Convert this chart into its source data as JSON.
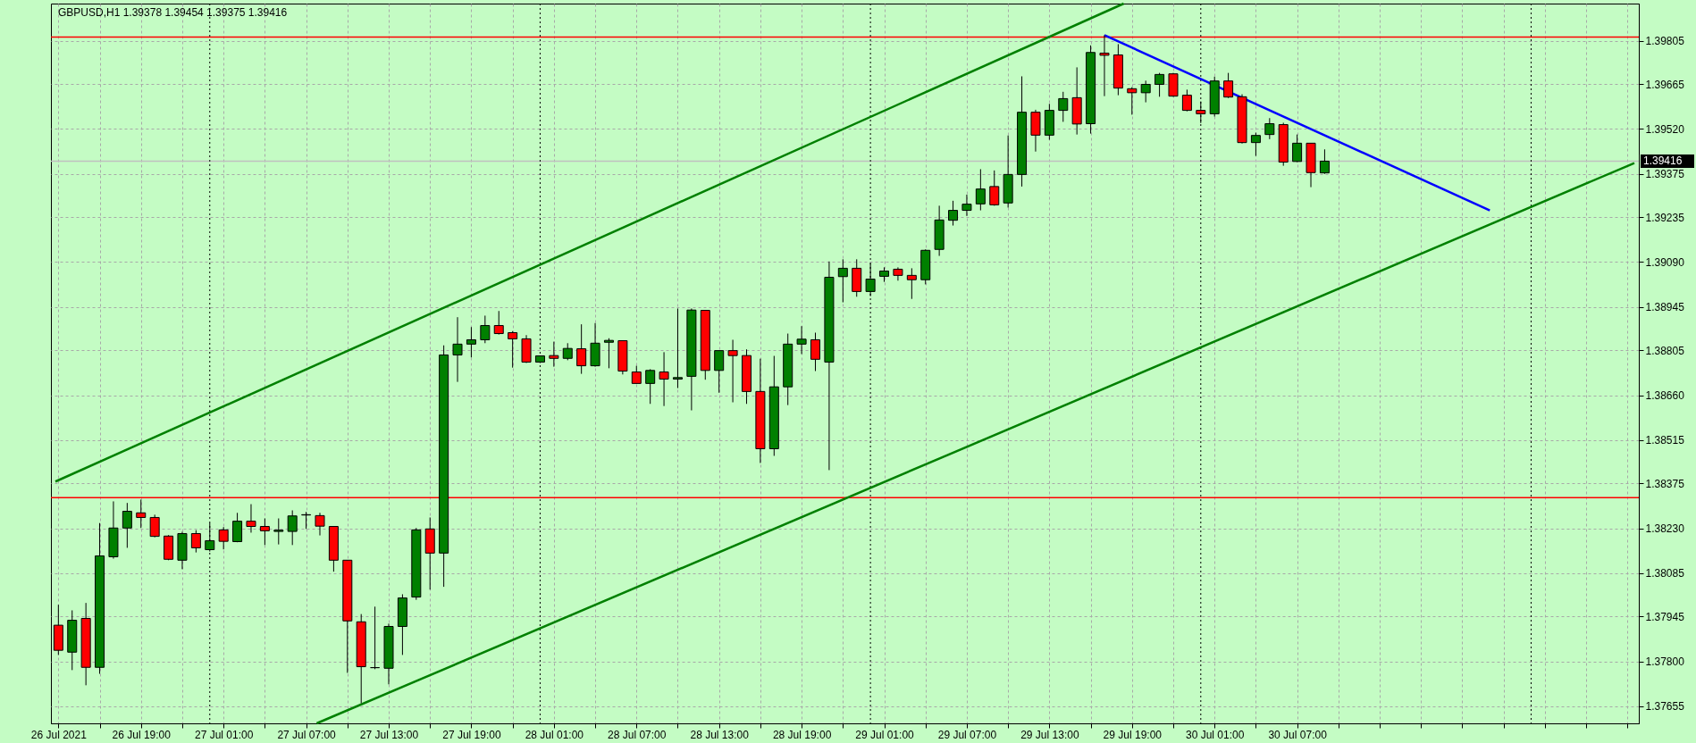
{
  "chart_data": {
    "type": "candlestick",
    "title": "GBPUSD,H1  1.39378 1.39454 1.39375 1.39416",
    "x": [
      "2021-07-26T13:00",
      "2021-07-26T14:00",
      "2021-07-26T15:00",
      "2021-07-26T16:00",
      "2021-07-26T17:00",
      "2021-07-26T18:00",
      "2021-07-26T19:00",
      "2021-07-26T20:00",
      "2021-07-26T21:00",
      "2021-07-26T22:00",
      "2021-07-26T23:00",
      "2021-07-27T00:00",
      "2021-07-27T01:00",
      "2021-07-27T02:00",
      "2021-07-27T03:00",
      "2021-07-27T04:00",
      "2021-07-27T05:00",
      "2021-07-27T06:00",
      "2021-07-27T07:00",
      "2021-07-27T08:00",
      "2021-07-27T09:00",
      "2021-07-27T10:00",
      "2021-07-27T11:00",
      "2021-07-27T12:00",
      "2021-07-27T13:00",
      "2021-07-27T14:00",
      "2021-07-27T15:00",
      "2021-07-27T16:00",
      "2021-07-27T17:00",
      "2021-07-27T18:00",
      "2021-07-27T19:00",
      "2021-07-27T20:00",
      "2021-07-27T21:00",
      "2021-07-27T22:00",
      "2021-07-27T23:00",
      "2021-07-28T00:00",
      "2021-07-28T01:00",
      "2021-07-28T02:00",
      "2021-07-28T03:00",
      "2021-07-28T04:00",
      "2021-07-28T05:00",
      "2021-07-28T06:00",
      "2021-07-28T07:00",
      "2021-07-28T08:00",
      "2021-07-28T09:00",
      "2021-07-28T10:00",
      "2021-07-28T11:00",
      "2021-07-28T12:00",
      "2021-07-28T13:00",
      "2021-07-28T14:00",
      "2021-07-28T15:00",
      "2021-07-28T16:00",
      "2021-07-28T17:00",
      "2021-07-28T18:00",
      "2021-07-28T19:00",
      "2021-07-28T20:00",
      "2021-07-28T21:00",
      "2021-07-28T22:00",
      "2021-07-28T23:00",
      "2021-07-29T00:00",
      "2021-07-29T01:00",
      "2021-07-29T02:00",
      "2021-07-29T03:00",
      "2021-07-29T04:00",
      "2021-07-29T05:00",
      "2021-07-29T06:00",
      "2021-07-29T07:00",
      "2021-07-29T08:00",
      "2021-07-29T09:00",
      "2021-07-29T10:00",
      "2021-07-29T11:00",
      "2021-07-29T12:00",
      "2021-07-29T13:00",
      "2021-07-29T14:00",
      "2021-07-29T15:00",
      "2021-07-29T16:00",
      "2021-07-29T17:00",
      "2021-07-29T18:00",
      "2021-07-29T19:00",
      "2021-07-29T20:00",
      "2021-07-29T21:00",
      "2021-07-29T22:00",
      "2021-07-29T23:00",
      "2021-07-30T00:00",
      "2021-07-30T01:00",
      "2021-07-30T02:00",
      "2021-07-30T03:00",
      "2021-07-30T04:00",
      "2021-07-30T05:00",
      "2021-07-30T06:00",
      "2021-07-30T07:00",
      "2021-07-30T08:00",
      "2021-07-30T09:00"
    ],
    "ohlc": [
      [
        1.37917,
        1.37983,
        1.37821,
        1.37836
      ],
      [
        1.3783,
        1.37965,
        1.37772,
        1.37933
      ],
      [
        1.37939,
        1.37989,
        1.37723,
        1.37781
      ],
      [
        1.37781,
        1.38247,
        1.3776,
        1.38141
      ],
      [
        1.38138,
        1.38317,
        1.38132,
        1.38231
      ],
      [
        1.38231,
        1.38312,
        1.38167,
        1.38285
      ],
      [
        1.3828,
        1.38323,
        1.38231,
        1.38265
      ],
      [
        1.38265,
        1.38274,
        1.38201,
        1.38204
      ],
      [
        1.38205,
        1.38208,
        1.38127,
        1.3813
      ],
      [
        1.38127,
        1.38219,
        1.38098,
        1.38213
      ],
      [
        1.38213,
        1.38224,
        1.38152,
        1.38167
      ],
      [
        1.38161,
        1.38247,
        1.38155,
        1.3819
      ],
      [
        1.38225,
        1.38234,
        1.38162,
        1.38188
      ],
      [
        1.38187,
        1.3828,
        1.38185,
        1.38253
      ],
      [
        1.38253,
        1.38308,
        1.38216,
        1.38236
      ],
      [
        1.38236,
        1.38262,
        1.38176,
        1.38222
      ],
      [
        1.3822,
        1.38262,
        1.38178,
        1.38224
      ],
      [
        1.3822,
        1.38288,
        1.38176,
        1.3827
      ],
      [
        1.38273,
        1.38283,
        1.38228,
        1.38274
      ],
      [
        1.38271,
        1.3828,
        1.38207,
        1.38237
      ],
      [
        1.38236,
        1.38236,
        1.3809,
        1.38127
      ],
      [
        1.38127,
        1.38127,
        1.37763,
        1.37931
      ],
      [
        1.37928,
        1.37953,
        1.37665,
        1.37783
      ],
      [
        1.3778,
        1.37977,
        1.37775,
        1.3778
      ],
      [
        1.37778,
        1.37922,
        1.37726,
        1.37913
      ],
      [
        1.37913,
        1.38017,
        1.37821,
        1.38005
      ],
      [
        1.38008,
        1.38231,
        1.37999,
        1.38225
      ],
      [
        1.38228,
        1.38265,
        1.38032,
        1.3815
      ],
      [
        1.3815,
        1.38821,
        1.38041,
        1.3879
      ],
      [
        1.3879,
        1.38912,
        1.38703,
        1.38825
      ],
      [
        1.38825,
        1.3888,
        1.38782,
        1.38839
      ],
      [
        1.38839,
        1.38917,
        1.38828,
        1.38885
      ],
      [
        1.38885,
        1.38932,
        1.38856,
        1.38859
      ],
      [
        1.38862,
        1.38867,
        1.38749,
        1.38842
      ],
      [
        1.38842,
        1.38854,
        1.38764,
        1.38767
      ],
      [
        1.38767,
        1.38787,
        1.38764,
        1.38787
      ],
      [
        1.38788,
        1.38833,
        1.38752,
        1.38779
      ],
      [
        1.38779,
        1.38828,
        1.38773,
        1.38811
      ],
      [
        1.3881,
        1.38889,
        1.38729,
        1.38755
      ],
      [
        1.38755,
        1.38893,
        1.38752,
        1.38828
      ],
      [
        1.38831,
        1.38844,
        1.38747,
        1.38837
      ],
      [
        1.38836,
        1.38836,
        1.38727,
        1.38738
      ],
      [
        1.38735,
        1.38755,
        1.38698,
        1.38698
      ],
      [
        1.38698,
        1.38744,
        1.38632,
        1.3874
      ],
      [
        1.38735,
        1.38799,
        1.38625,
        1.38712
      ],
      [
        1.38712,
        1.3894,
        1.38683,
        1.38717
      ],
      [
        1.38721,
        1.3894,
        1.38611,
        1.38935
      ],
      [
        1.38934,
        1.38934,
        1.3871,
        1.3874
      ],
      [
        1.3874,
        1.38804,
        1.38668,
        1.38804
      ],
      [
        1.38804,
        1.38839,
        1.38637,
        1.38788
      ],
      [
        1.38788,
        1.38808,
        1.38632,
        1.38672
      ],
      [
        1.38672,
        1.38778,
        1.38441,
        1.38487
      ],
      [
        1.38487,
        1.38787,
        1.38464,
        1.38687
      ],
      [
        1.38687,
        1.38859,
        1.38628,
        1.38825
      ],
      [
        1.38825,
        1.38883,
        1.38793,
        1.38841
      ],
      [
        1.38839,
        1.38862,
        1.38738,
        1.38776
      ],
      [
        1.38767,
        1.39092,
        1.38418,
        1.39041
      ],
      [
        1.39043,
        1.39099,
        1.3896,
        1.3907
      ],
      [
        1.3907,
        1.39099,
        1.38978,
        1.38995
      ],
      [
        1.38995,
        1.39086,
        1.3898,
        1.39035
      ],
      [
        1.39044,
        1.39073,
        1.39026,
        1.39061
      ],
      [
        1.39067,
        1.39073,
        1.3903,
        1.39047
      ],
      [
        1.39047,
        1.3907,
        1.38971,
        1.39033
      ],
      [
        1.39033,
        1.39131,
        1.39018,
        1.39128
      ],
      [
        1.39131,
        1.39272,
        1.3911,
        1.39226
      ],
      [
        1.39225,
        1.39288,
        1.39208,
        1.39257
      ],
      [
        1.39257,
        1.39308,
        1.39239,
        1.39277
      ],
      [
        1.39278,
        1.3939,
        1.39257,
        1.39326
      ],
      [
        1.39334,
        1.39386,
        1.39272,
        1.39275
      ],
      [
        1.39281,
        1.39499,
        1.39266,
        1.39373
      ],
      [
        1.39373,
        1.3969,
        1.39334,
        1.39574
      ],
      [
        1.39574,
        1.39582,
        1.39447,
        1.395
      ],
      [
        1.395,
        1.39601,
        1.39485,
        1.3958
      ],
      [
        1.3958,
        1.3964,
        1.39543,
        1.39618
      ],
      [
        1.39621,
        1.39719,
        1.39502,
        1.39536
      ],
      [
        1.39537,
        1.3979,
        1.39505,
        1.39767
      ],
      [
        1.39765,
        1.39823,
        1.39626,
        1.39758
      ],
      [
        1.39759,
        1.39794,
        1.39629,
        1.39652
      ],
      [
        1.3965,
        1.39655,
        1.39566,
        1.39637
      ],
      [
        1.39637,
        1.39676,
        1.39606,
        1.39664
      ],
      [
        1.39664,
        1.39701,
        1.39624,
        1.39696
      ],
      [
        1.39698,
        1.39701,
        1.39624,
        1.39626
      ],
      [
        1.39629,
        1.39647,
        1.39577,
        1.3958
      ],
      [
        1.3958,
        1.39609,
        1.39539,
        1.39569
      ],
      [
        1.39569,
        1.39689,
        1.3956,
        1.39675
      ],
      [
        1.39675,
        1.39701,
        1.3962,
        1.39623
      ],
      [
        1.39624,
        1.39632,
        1.39473,
        1.39476
      ],
      [
        1.39476,
        1.39508,
        1.39433,
        1.39499
      ],
      [
        1.39502,
        1.39555,
        1.39487,
        1.39537
      ],
      [
        1.39534,
        1.3954,
        1.39401,
        1.39413
      ],
      [
        1.39415,
        1.39502,
        1.39413,
        1.39474
      ],
      [
        1.39474,
        1.39474,
        1.39332,
        1.39379
      ],
      [
        1.39378,
        1.39454,
        1.39375,
        1.39416
      ]
    ],
    "colors": [
      "#ff0000",
      "#008000",
      "#ff0000",
      "#008000",
      "#008000",
      "#008000",
      "#ff0000",
      "#ff0000",
      "#ff0000",
      "#008000",
      "#ff0000",
      "#008000",
      "#ff0000",
      "#008000",
      "#ff0000",
      "#ff0000",
      "#008000",
      "#008000",
      "#008000",
      "#ff0000",
      "#ff0000",
      "#ff0000",
      "#ff0000",
      "#000000",
      "#008000",
      "#008000",
      "#008000",
      "#ff0000",
      "#008000",
      "#008000",
      "#008000",
      "#008000",
      "#ff0000",
      "#ff0000",
      "#ff0000",
      "#008000",
      "#ff0000",
      "#008000",
      "#ff0000",
      "#008000",
      "#008000",
      "#ff0000",
      "#ff0000",
      "#008000",
      "#ff0000",
      "#008000",
      "#008000",
      "#ff0000",
      "#008000",
      "#ff0000",
      "#ff0000",
      "#ff0000",
      "#008000",
      "#008000",
      "#008000",
      "#ff0000",
      "#008000",
      "#008000",
      "#ff0000",
      "#008000",
      "#008000",
      "#ff0000",
      "#ff0000",
      "#008000",
      "#008000",
      "#008000",
      "#008000",
      "#008000",
      "#ff0000",
      "#008000",
      "#008000",
      "#ff0000",
      "#008000",
      "#008000",
      "#ff0000",
      "#008000",
      "#ff0000",
      "#ff0000",
      "#ff0000",
      "#008000",
      "#008000",
      "#ff0000",
      "#ff0000",
      "#ff0000",
      "#008000",
      "#ff0000",
      "#ff0000",
      "#008000",
      "#008000",
      "#ff0000",
      "#008000",
      "#ff0000",
      "#008000"
    ],
    "series": [
      {
        "type": "line",
        "color": "#008000",
        "x": [
          "2021-07-26T12:47",
          "2021-07-29T18:24"
        ],
        "values": [
          1.38381,
          1.39925
        ]
      },
      {
        "type": "line",
        "color": "#008000",
        "x": [
          "2021-07-27T07:46",
          "2021-07-31T07:30"
        ],
        "values": [
          1.376,
          1.3941
        ]
      },
      {
        "type": "line",
        "color": "#0000ff",
        "x": [
          "2021-07-29T17:00",
          "2021-07-30T21:00"
        ],
        "values": [
          1.39823,
          1.39257
        ]
      }
    ],
    "ref_lines": [
      {
        "axis": "y",
        "value": 1.39817,
        "color": "#ff0000",
        "line_style": "solid"
      },
      {
        "axis": "y",
        "value": 1.38329,
        "color": "#ff0000",
        "line_style": "solid"
      },
      {
        "axis": "y",
        "value": 1.39416,
        "label": "1.39416",
        "color": "#c0c0c0",
        "line_style": "solid"
      },
      {
        "axis": "x",
        "value": "2021-07-27T00:00",
        "color": "#000000",
        "line_style": "dotted"
      },
      {
        "axis": "x",
        "value": "2021-07-28T00:00",
        "color": "#000000",
        "line_style": "dotted"
      },
      {
        "axis": "x",
        "value": "2021-07-29T00:00",
        "color": "#000000",
        "line_style": "dotted"
      },
      {
        "axis": "x",
        "value": "2021-07-30T00:00",
        "color": "#000000",
        "line_style": "dotted"
      },
      {
        "axis": "x",
        "value": "2021-07-31T00:00",
        "color": "#000000",
        "line_style": "dotted"
      }
    ],
    "xlim": [
      "2021-07-26T12:47",
      "2021-07-31T07:30"
    ],
    "xticks": [
      {
        "value": "2021-07-26T13:00",
        "label": "26 Jul 2021"
      },
      {
        "value": "2021-07-26T16:00",
        "label": null
      },
      {
        "value": "2021-07-26T19:00",
        "label": "26 Jul 19:00"
      },
      {
        "value": "2021-07-26T22:00",
        "label": null
      },
      {
        "value": "2021-07-27T01:00",
        "label": "27 Jul 01:00"
      },
      {
        "value": "2021-07-27T04:00",
        "label": null
      },
      {
        "value": "2021-07-27T07:00",
        "label": "27 Jul 07:00"
      },
      {
        "value": "2021-07-27T10:00",
        "label": null
      },
      {
        "value": "2021-07-27T13:00",
        "label": "27 Jul 13:00"
      },
      {
        "value": "2021-07-27T16:00",
        "label": null
      },
      {
        "value": "2021-07-27T19:00",
        "label": "27 Jul 19:00"
      },
      {
        "value": "2021-07-27T22:00",
        "label": null
      },
      {
        "value": "2021-07-28T01:00",
        "label": "28 Jul 01:00"
      },
      {
        "value": "2021-07-28T04:00",
        "label": null
      },
      {
        "value": "2021-07-28T07:00",
        "label": "28 Jul 07:00"
      },
      {
        "value": "2021-07-28T10:00",
        "label": null
      },
      {
        "value": "2021-07-28T13:00",
        "label": "28 Jul 13:00"
      },
      {
        "value": "2021-07-28T16:00",
        "label": null
      },
      {
        "value": "2021-07-28T19:00",
        "label": "28 Jul 19:00"
      },
      {
        "value": "2021-07-28T22:00",
        "label": null
      },
      {
        "value": "2021-07-29T01:00",
        "label": "29 Jul 01:00"
      },
      {
        "value": "2021-07-29T04:00",
        "label": null
      },
      {
        "value": "2021-07-29T07:00",
        "label": "29 Jul 07:00"
      },
      {
        "value": "2021-07-29T10:00",
        "label": null
      },
      {
        "value": "2021-07-29T13:00",
        "label": "29 Jul 13:00"
      },
      {
        "value": "2021-07-29T16:00",
        "label": null
      },
      {
        "value": "2021-07-29T19:00",
        "label": "29 Jul 19:00"
      },
      {
        "value": "2021-07-29T22:00",
        "label": null
      },
      {
        "value": "2021-07-30T01:00",
        "label": "30 Jul 01:00"
      },
      {
        "value": "2021-07-30T04:00",
        "label": null
      },
      {
        "value": "2021-07-30T07:00",
        "label": "30 Jul 07:00"
      },
      {
        "value": "2021-07-30T10:00",
        "label": null
      },
      {
        "value": "2021-07-30T13:00",
        "label": null
      },
      {
        "value": "2021-07-30T16:00",
        "label": null
      },
      {
        "value": "2021-07-30T19:00",
        "label": null
      },
      {
        "value": "2021-07-30T22:00",
        "label": null
      },
      {
        "value": "2021-07-31T01:00",
        "label": null
      },
      {
        "value": "2021-07-31T04:00",
        "label": null
      },
      {
        "value": "2021-07-31T07:00",
        "label": null
      }
    ],
    "ylim": [
      1.376,
      1.39925
    ],
    "yticks": [
      {
        "value": 1.39805,
        "label": "1.39805"
      },
      {
        "value": 1.39665,
        "label": "1.39665"
      },
      {
        "value": 1.3952,
        "label": "1.39520"
      },
      {
        "value": 1.39375,
        "label": "1.39375"
      },
      {
        "value": 1.39235,
        "label": "1.39235"
      },
      {
        "value": 1.3909,
        "label": "1.39090"
      },
      {
        "value": 1.38945,
        "label": "1.38945"
      },
      {
        "value": 1.38805,
        "label": "1.38805"
      },
      {
        "value": 1.3866,
        "label": "1.38660"
      },
      {
        "value": 1.38515,
        "label": "1.38515"
      },
      {
        "value": 1.38375,
        "label": "1.38375"
      },
      {
        "value": 1.3823,
        "label": "1.38230"
      },
      {
        "value": 1.38085,
        "label": "1.38085"
      },
      {
        "value": 1.37945,
        "label": "1.37945"
      },
      {
        "value": 1.378,
        "label": "1.37800"
      },
      {
        "value": 1.37655,
        "label": "1.37655"
      }
    ],
    "grid": true
  }
}
